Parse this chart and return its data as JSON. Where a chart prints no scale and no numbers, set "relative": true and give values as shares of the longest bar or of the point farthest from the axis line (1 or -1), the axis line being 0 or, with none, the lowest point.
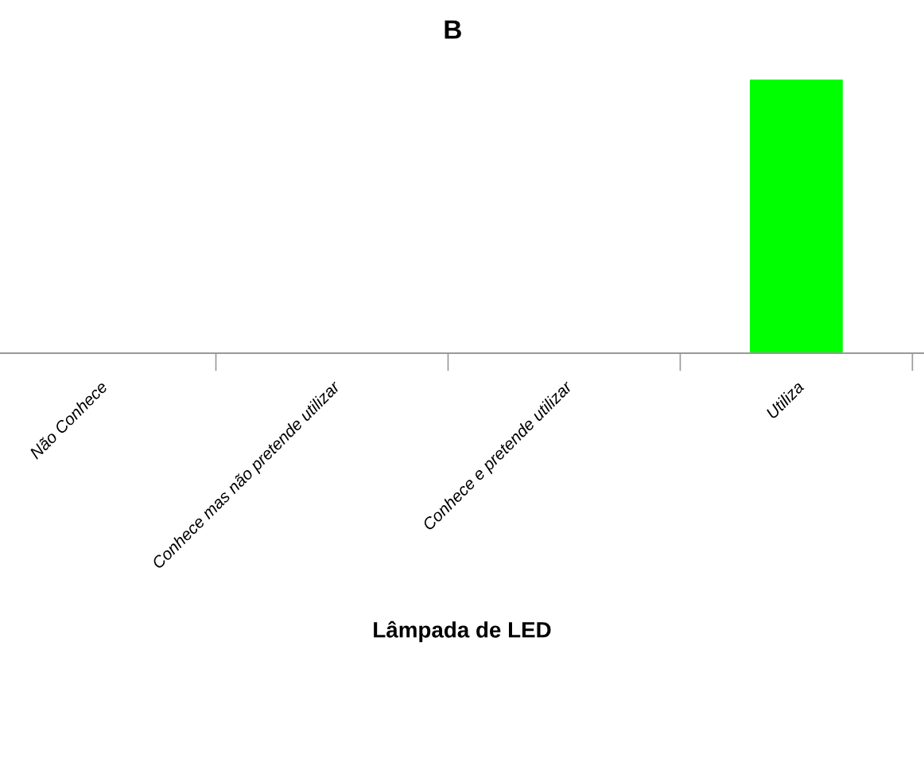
{
  "chart_data": {
    "type": "bar",
    "title": "B",
    "xlabel": "Lâmpada de LED",
    "relative": true,
    "categories": [
      "Não Conhece",
      "Conhece mas não pretende utilizar",
      "Conhece e pretende utilizar",
      "Utiliza"
    ],
    "values": [
      0,
      0,
      0,
      1
    ],
    "color": "#00ff00",
    "grid": false,
    "legend": false
  }
}
